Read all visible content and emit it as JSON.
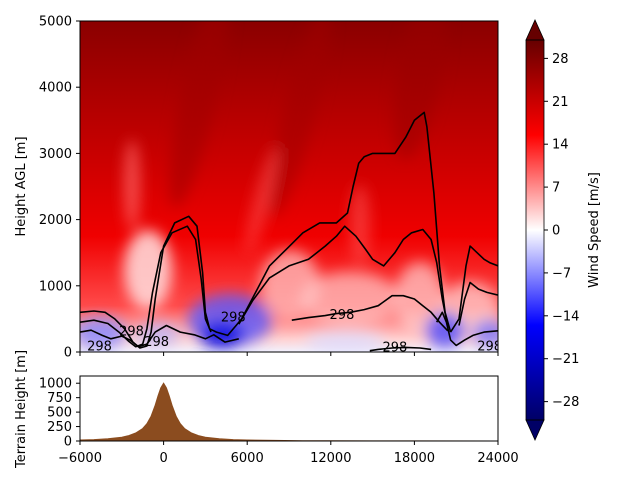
{
  "chart_data": [
    {
      "type": "heatmap",
      "panel": "wind-cross-section",
      "ylabel": "Height AGL [m]",
      "xlim": [
        -6000,
        24000
      ],
      "ylim": [
        0,
        5000
      ],
      "yticks": [
        0,
        1000,
        2000,
        3000,
        4000,
        5000
      ],
      "colorbar": {
        "label": "Wind Speed [m/s]",
        "range": [
          -31,
          31
        ],
        "ticks": [
          28,
          21,
          14,
          7,
          0,
          -7,
          -14,
          -21,
          -28
        ],
        "colormap": [
          "#000066",
          "#0000ff",
          "#ffffff",
          "#ff0000",
          "#660000"
        ],
        "extend": "both"
      },
      "contour_label": "298",
      "contour_color": "#000000",
      "contours": [
        {
          "points": [
            [
              -6000,
              600
            ],
            [
              -5000,
              620
            ],
            [
              -4200,
              600
            ],
            [
              -3500,
              500
            ],
            [
              -2800,
              350
            ],
            [
              -2200,
              150
            ],
            [
              -1700,
              60
            ],
            [
              -1200,
              90
            ],
            [
              -900,
              300
            ],
            [
              -600,
              800
            ],
            [
              0,
              1600
            ],
            [
              800,
              1950
            ],
            [
              1800,
              2050
            ],
            [
              2400,
              1900
            ],
            [
              2800,
              1200
            ],
            [
              3000,
              600
            ],
            [
              3300,
              350
            ],
            [
              3800,
              300
            ],
            [
              4600,
              250
            ],
            [
              5200,
              400
            ],
            [
              5600,
              500
            ]
          ]
        },
        {
          "points": [
            [
              5600,
              500
            ],
            [
              6600,
              900
            ],
            [
              7600,
              1300
            ],
            [
              8800,
              1550
            ],
            [
              10000,
              1800
            ],
            [
              11200,
              1950
            ],
            [
              12400,
              1950
            ],
            [
              13200,
              2100
            ],
            [
              13600,
              2500
            ],
            [
              14000,
              2850
            ],
            [
              14400,
              2950
            ],
            [
              15000,
              3000
            ],
            [
              15800,
              3000
            ],
            [
              16600,
              3000
            ],
            [
              17400,
              3250
            ],
            [
              18000,
              3500
            ],
            [
              18700,
              3620
            ],
            [
              18900,
              3400
            ],
            [
              19400,
              2400
            ],
            [
              19800,
              1300
            ],
            [
              20200,
              600
            ],
            [
              20600,
              300
            ]
          ]
        },
        {
          "points": [
            [
              -6000,
              450
            ],
            [
              -5000,
              480
            ],
            [
              -4000,
              430
            ],
            [
              -3200,
              300
            ],
            [
              -2500,
              160
            ],
            [
              -2000,
              80
            ],
            [
              -1500,
              120
            ],
            [
              -1200,
              350
            ],
            [
              -800,
              900
            ],
            [
              -200,
              1500
            ],
            [
              600,
              1800
            ],
            [
              1700,
              1900
            ],
            [
              2300,
              1700
            ],
            [
              2700,
              1100
            ],
            [
              3000,
              500
            ],
            [
              3400,
              300
            ]
          ]
        },
        {
          "points": [
            [
              5400,
              420
            ],
            [
              6400,
              780
            ],
            [
              7600,
              1120
            ],
            [
              9000,
              1300
            ],
            [
              10400,
              1400
            ],
            [
              11600,
              1600
            ],
            [
              12400,
              1750
            ],
            [
              13000,
              1900
            ],
            [
              13800,
              1750
            ],
            [
              14500,
              1550
            ],
            [
              15000,
              1400
            ],
            [
              15800,
              1300
            ],
            [
              16600,
              1500
            ],
            [
              17200,
              1700
            ],
            [
              17800,
              1800
            ],
            [
              18600,
              1850
            ],
            [
              19200,
              1700
            ],
            [
              19600,
              1350
            ],
            [
              20000,
              800
            ],
            [
              20400,
              380
            ]
          ]
        },
        {
          "points": [
            [
              9200,
              480
            ],
            [
              10400,
              520
            ],
            [
              11600,
              550
            ],
            [
              12400,
              580
            ],
            [
              13400,
              600
            ],
            [
              14400,
              640
            ],
            [
              15400,
              700
            ],
            [
              16400,
              850
            ],
            [
              17200,
              850
            ],
            [
              18000,
              800
            ],
            [
              18600,
              700
            ],
            [
              19200,
              600
            ],
            [
              19800,
              450
            ],
            [
              20400,
              320
            ]
          ]
        },
        {
          "points": [
            [
              20600,
              300
            ],
            [
              21200,
              500
            ],
            [
              21700,
              1300
            ],
            [
              22000,
              1600
            ],
            [
              22500,
              1500
            ],
            [
              23000,
              1400
            ],
            [
              23400,
              1350
            ],
            [
              24000,
              1300
            ]
          ]
        },
        {
          "points": [
            [
              21200,
              400
            ],
            [
              21600,
              800
            ],
            [
              22000,
              1050
            ],
            [
              22600,
              950
            ],
            [
              23200,
              900
            ],
            [
              24000,
              860
            ]
          ]
        },
        {
          "points": [
            [
              -6000,
              300
            ],
            [
              -5200,
              330
            ],
            [
              -4400,
              250
            ],
            [
              -3800,
              200
            ],
            [
              -3000,
              240
            ],
            [
              -2400,
              180
            ],
            [
              -1800,
              80
            ],
            [
              -1200,
              120
            ],
            [
              -600,
              300
            ],
            [
              200,
              400
            ],
            [
              1200,
              300
            ],
            [
              2200,
              260
            ],
            [
              3000,
              200
            ],
            [
              3600,
              260
            ],
            [
              4400,
              150
            ],
            [
              5400,
              200
            ]
          ]
        },
        {
          "points": [
            [
              19600,
              450
            ],
            [
              20000,
              600
            ],
            [
              20300,
              450
            ],
            [
              20600,
              180
            ],
            [
              21000,
              100
            ],
            [
              21600,
              180
            ],
            [
              22200,
              250
            ],
            [
              23000,
              300
            ],
            [
              24000,
              320
            ]
          ]
        },
        {
          "points": [
            [
              14800,
              20
            ],
            [
              15400,
              40
            ],
            [
              16400,
              60
            ],
            [
              17400,
              70
            ],
            [
              18400,
              60
            ],
            [
              19200,
              40
            ]
          ]
        }
      ],
      "contour_labels": [
        {
          "text": "298",
          "x": -4600,
          "y": 80
        },
        {
          "text": "298",
          "x": -2300,
          "y": 310
        },
        {
          "text": "298",
          "x": -500,
          "y": 150
        },
        {
          "text": "298",
          "x": 5000,
          "y": 520
        },
        {
          "text": "298",
          "x": 12800,
          "y": 560
        },
        {
          "text": "298",
          "x": 16600,
          "y": 70
        },
        {
          "text": "298",
          "x": 23400,
          "y": 80
        }
      ]
    },
    {
      "type": "area",
      "panel": "terrain",
      "ylabel": "Terrain Height [m]",
      "xlim": [
        -6000,
        24000
      ],
      "ylim": [
        0,
        1125
      ],
      "xticks": [
        -6000,
        0,
        6000,
        12000,
        18000,
        24000
      ],
      "yticks": [
        0,
        250,
        500,
        750,
        1000
      ],
      "fill_color": "#8b4c1f",
      "x": [
        -6000,
        -5000,
        -4000,
        -3000,
        -2500,
        -2000,
        -1500,
        -1200,
        -900,
        -600,
        -400,
        -200,
        0,
        200,
        400,
        600,
        900,
        1200,
        1500,
        2000,
        2500,
        3000,
        4000,
        5000,
        6000,
        8000,
        10000,
        12000,
        15000,
        18000,
        24000
      ],
      "values": [
        17,
        24,
        38,
        66,
        94,
        138,
        216,
        300,
        430,
        620,
        780,
        920,
        1000,
        920,
        780,
        620,
        430,
        300,
        216,
        138,
        94,
        66,
        38,
        24,
        17,
        10,
        6,
        4,
        2,
        1,
        0
      ]
    }
  ]
}
